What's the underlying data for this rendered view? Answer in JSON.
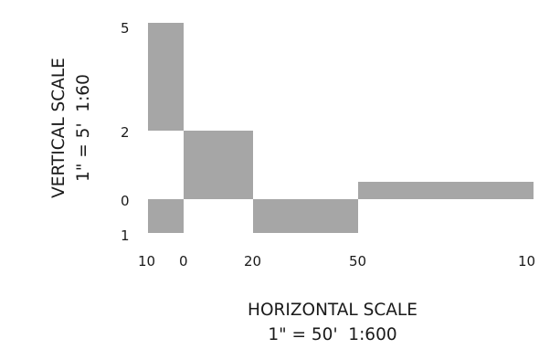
{
  "chart_data": {
    "type": "bar",
    "description_of_marks": "alternating gray scale blocks",
    "horizontal_scale": {
      "title": "HORIZONTAL SCALE",
      "ratio": "1\" = 50'  1:600",
      "tick_labels": [
        "10",
        "0",
        "20",
        "50",
        "10"
      ],
      "blocks": [
        {
          "from_tick": "10",
          "to_tick": "0",
          "low_tick": "1",
          "high_tick": "0"
        },
        {
          "from_tick": "0",
          "to_tick": "0",
          "low_tick": "2",
          "high_tick": "5"
        },
        {
          "from_tick": "0",
          "to_tick": "20",
          "low_tick": "0",
          "high_tick": "2"
        },
        {
          "from_tick": "20",
          "to_tick": "50",
          "low_tick": "1",
          "high_tick": "0"
        },
        {
          "from_tick": "50",
          "to_tick": "10",
          "low_tick": "0",
          "high_tick": "0"
        }
      ]
    },
    "vertical_scale": {
      "title": "VERTICAL SCALE",
      "ratio": "1\" = 5'  1:60",
      "tick_labels": [
        "5",
        "2",
        "0",
        "1"
      ]
    },
    "colors": {
      "block": "#a6a6a6",
      "text": "#1a1a1a",
      "background": "#ffffff"
    }
  }
}
